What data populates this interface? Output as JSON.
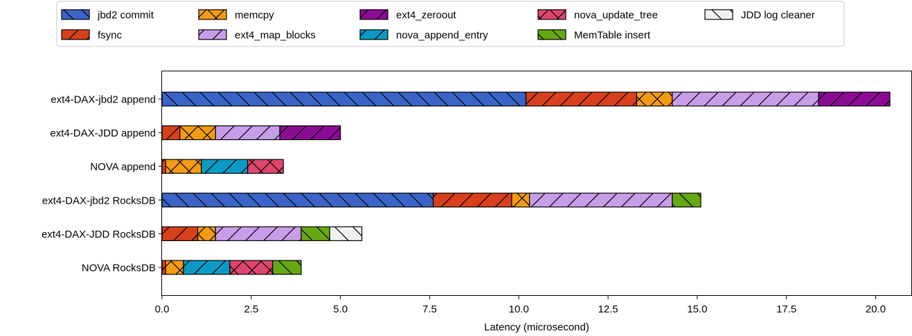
{
  "chart_data": {
    "type": "bar",
    "orientation": "horizontal",
    "stacked": true,
    "xlabel": "Latency (microsecond)",
    "xlim": [
      0,
      21
    ],
    "xticks": [
      "0.0",
      "2.5",
      "5.0",
      "7.5",
      "10.0",
      "12.5",
      "15.0",
      "17.5",
      "20.0"
    ],
    "tick_values": [
      0,
      2.5,
      5,
      7.5,
      10,
      12.5,
      15,
      17.5,
      20
    ],
    "grid": false,
    "legend_position": "top",
    "categories": [
      "ext4-DAX-jbd2 append",
      "ext4-DAX-JDD append",
      "NOVA append",
      "ext4-DAX-jbd2 RocksDB",
      "ext4-DAX-JDD RocksDB",
      "NOVA RocksDB"
    ],
    "series": [
      {
        "name": "jbd2 commit",
        "color": "#3a64c8",
        "hatch": "backslash",
        "values": [
          10.2,
          0,
          0,
          7.6,
          0,
          0
        ]
      },
      {
        "name": "fsync",
        "color": "#d8401c",
        "hatch": "slash",
        "values": [
          3.1,
          0.5,
          0.1,
          2.2,
          1.0,
          0.1
        ]
      },
      {
        "name": "memcpy",
        "color": "#f49b14",
        "hatch": "cross",
        "values": [
          1.0,
          1.0,
          1.0,
          0.5,
          0.5,
          0.5
        ]
      },
      {
        "name": "ext4_map_blocks",
        "color": "#c89de8",
        "hatch": "slash",
        "values": [
          4.1,
          1.8,
          0,
          4.0,
          2.4,
          0
        ]
      },
      {
        "name": "ext4_zeroout",
        "color": "#8c0c96",
        "hatch": "slash",
        "values": [
          2.0,
          1.7,
          0,
          0,
          0,
          0
        ]
      },
      {
        "name": "nova_append_entry",
        "color": "#0b9ac4",
        "hatch": "slash",
        "values": [
          0,
          0,
          1.3,
          0,
          0,
          1.3
        ]
      },
      {
        "name": "nova_update_tree",
        "color": "#e0456e",
        "hatch": "cross",
        "values": [
          0,
          0,
          1.0,
          0,
          0,
          1.2
        ]
      },
      {
        "name": "MemTable insert",
        "color": "#66a814",
        "hatch": "backslash",
        "values": [
          0,
          0,
          0,
          0.8,
          0.8,
          0.8
        ]
      },
      {
        "name": "JDD log cleaner",
        "color": "#f2f2f2",
        "hatch": "backslash",
        "values": [
          0,
          0,
          0,
          0,
          0.9,
          0
        ]
      }
    ]
  }
}
